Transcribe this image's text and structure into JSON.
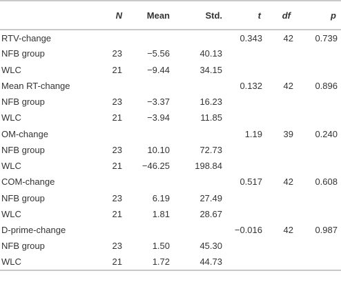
{
  "header": {
    "label": "",
    "n": "N",
    "mean": "Mean",
    "std": "Std.",
    "t": "t",
    "df": "df",
    "p": "p"
  },
  "rows": [
    {
      "label": "RTV-change",
      "n": "",
      "mean": "",
      "std": "",
      "t": "0.343",
      "df": "42",
      "p": "0.739"
    },
    {
      "label": "NFB group",
      "n": "23",
      "mean": "−5.56",
      "std": "40.13",
      "t": "",
      "df": "",
      "p": ""
    },
    {
      "label": "WLC",
      "n": "21",
      "mean": "−9.44",
      "std": "34.15",
      "t": "",
      "df": "",
      "p": ""
    },
    {
      "label": "Mean RT-change",
      "n": "",
      "mean": "",
      "std": "",
      "t": "0.132",
      "df": "42",
      "p": "0.896"
    },
    {
      "label": "NFB group",
      "n": "23",
      "mean": "−3.37",
      "std": "16.23",
      "t": "",
      "df": "",
      "p": ""
    },
    {
      "label": "WLC",
      "n": "21",
      "mean": "−3.94",
      "std": "11.85",
      "t": "",
      "df": "",
      "p": ""
    },
    {
      "label": "OM-change",
      "n": "",
      "mean": "",
      "std": "",
      "t": "1.19",
      "df": "39",
      "p": "0.240"
    },
    {
      "label": "NFB group",
      "n": "23",
      "mean": "10.10",
      "std": "72.73",
      "t": "",
      "df": "",
      "p": ""
    },
    {
      "label": "WLC",
      "n": "21",
      "mean": "−46.25",
      "std": "198.84",
      "t": "",
      "df": "",
      "p": ""
    },
    {
      "label": "COM-change",
      "n": "",
      "mean": "",
      "std": "",
      "t": "0.517",
      "df": "42",
      "p": "0.608"
    },
    {
      "label": "NFB group",
      "n": "23",
      "mean": "6.19",
      "std": "27.49",
      "t": "",
      "df": "",
      "p": ""
    },
    {
      "label": "WLC",
      "n": "21",
      "mean": "1.81",
      "std": "28.67",
      "t": "",
      "df": "",
      "p": ""
    },
    {
      "label": "D-prime-change",
      "n": "",
      "mean": "",
      "std": "",
      "t": "−0.016",
      "df": "42",
      "p": "0.987"
    },
    {
      "label": "NFB group",
      "n": "23",
      "mean": "1.50",
      "std": "45.30",
      "t": "",
      "df": "",
      "p": ""
    },
    {
      "label": "WLC",
      "n": "21",
      "mean": "1.72",
      "std": "44.73",
      "t": "",
      "df": "",
      "p": ""
    }
  ],
  "colors": {
    "text": "#333333",
    "rule": "#c8c8c8"
  }
}
